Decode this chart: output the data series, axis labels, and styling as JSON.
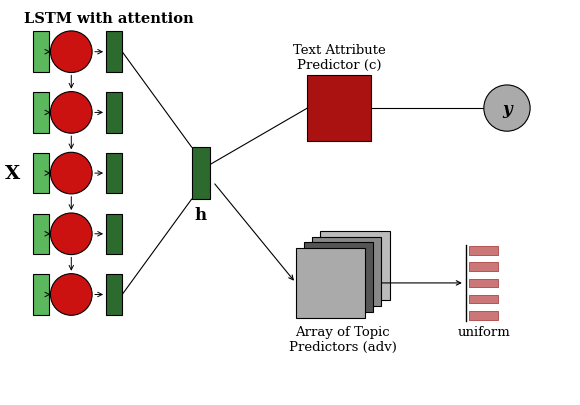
{
  "lstm_rect_left_color": "#5cb85c",
  "lstm_rect_right_color": "#2d6a2d",
  "lstm_circle_color": "#cc1111",
  "h_rect_color": "#2d6a2d",
  "tap_rect_color": "#aa1111",
  "y_circle_color": "#aaaaaa",
  "topic_colors_back_to_front": [
    "#aaaaaa",
    "#555555",
    "#888888",
    "#bbbbbb"
  ],
  "uniform_bar_color": "#cc7777",
  "label_lstm": "LSTM with attention",
  "label_x": "X",
  "label_h": "h",
  "label_tap": "Text Attribute\nPredictor (c)",
  "label_y": "y",
  "label_adv": "Array of Topic\nPredictors (adv)",
  "label_uniform": "uniform",
  "bg_color": "#ffffff"
}
